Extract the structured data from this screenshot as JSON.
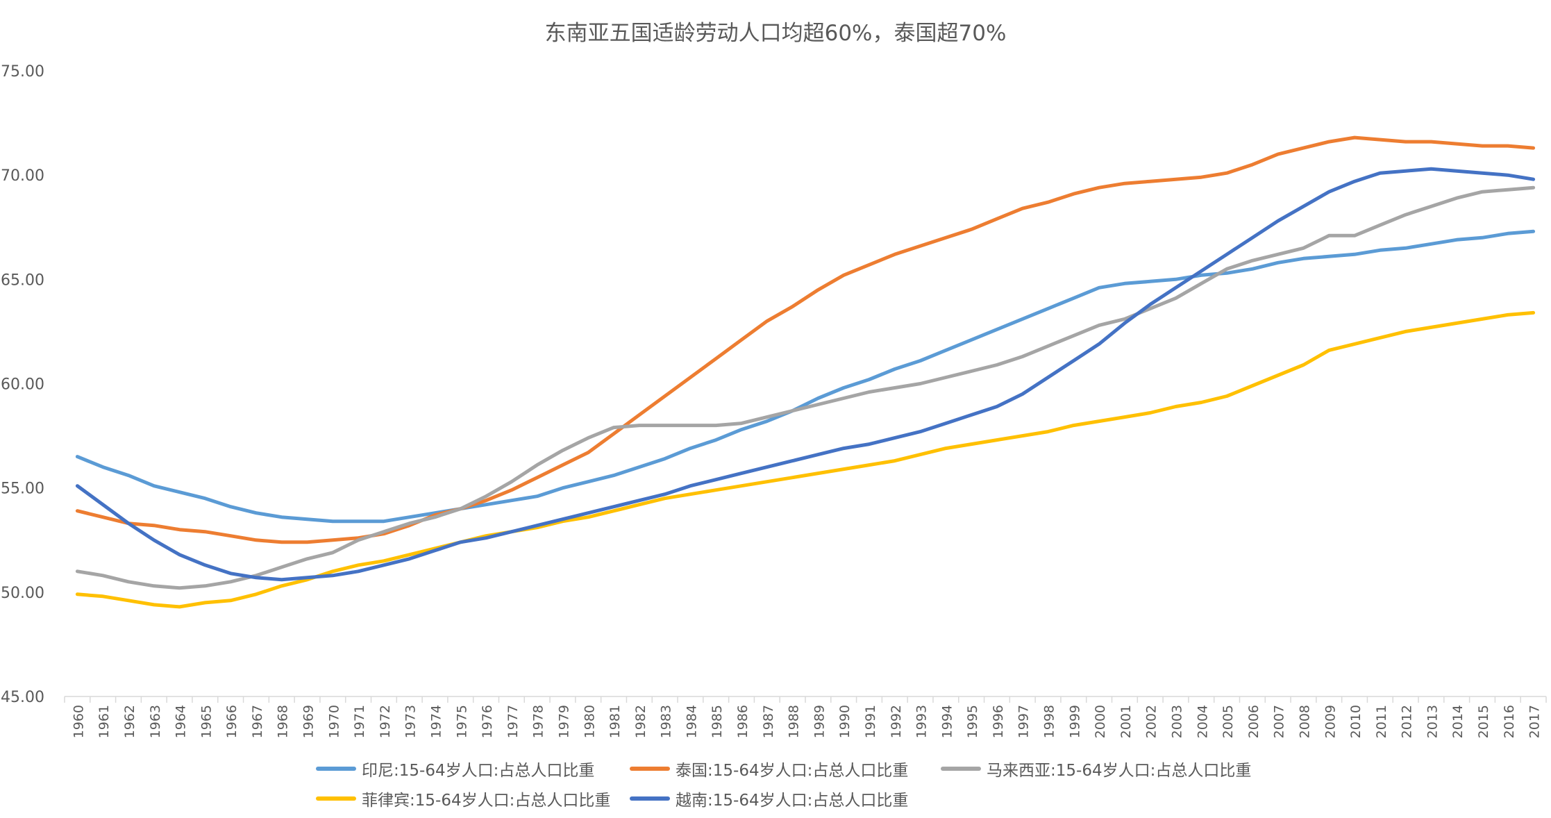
{
  "chart_data": {
    "type": "line",
    "title": "东南亚五国适龄劳动人口均超60%，泰国超70%",
    "xlabel": "",
    "ylabel": "",
    "ylim": [
      45,
      75
    ],
    "yticks": [
      "45.00",
      "50.00",
      "55.00",
      "60.00",
      "65.00",
      "70.00",
      "75.00"
    ],
    "grid": false,
    "legend_position": "bottom",
    "x": [
      "1960",
      "1961",
      "1962",
      "1963",
      "1964",
      "1965",
      "1966",
      "1967",
      "1968",
      "1969",
      "1970",
      "1971",
      "1972",
      "1973",
      "1974",
      "1975",
      "1976",
      "1977",
      "1978",
      "1979",
      "1980",
      "1981",
      "1982",
      "1983",
      "1984",
      "1985",
      "1986",
      "1987",
      "1988",
      "1989",
      "1990",
      "1991",
      "1992",
      "1993",
      "1994",
      "1995",
      "1996",
      "1997",
      "1998",
      "1999",
      "2000",
      "2001",
      "2002",
      "2003",
      "2004",
      "2005",
      "2006",
      "2007",
      "2008",
      "2009",
      "2010",
      "2011",
      "2012",
      "2013",
      "2014",
      "2015",
      "2016",
      "2017"
    ],
    "series": [
      {
        "name": "印尼:15-64岁人口:占总人口比重",
        "color": "#5B9BD5",
        "values": [
          56.5,
          56.0,
          55.6,
          55.1,
          54.8,
          54.5,
          54.1,
          53.8,
          53.6,
          53.5,
          53.4,
          53.4,
          53.4,
          53.6,
          53.8,
          54.0,
          54.2,
          54.4,
          54.6,
          55.0,
          55.3,
          55.6,
          56.0,
          56.4,
          56.9,
          57.3,
          57.8,
          58.2,
          58.7,
          59.3,
          59.8,
          60.2,
          60.7,
          61.1,
          61.6,
          62.1,
          62.6,
          63.1,
          63.6,
          64.1,
          64.6,
          64.8,
          64.9,
          65.0,
          65.2,
          65.3,
          65.5,
          65.8,
          66.0,
          66.1,
          66.2,
          66.4,
          66.5,
          66.7,
          66.9,
          67.0,
          67.2,
          67.3
        ]
      },
      {
        "name": "泰国:15-64岁人口:占总人口比重",
        "color": "#ED7D31",
        "values": [
          53.9,
          53.6,
          53.3,
          53.2,
          53.0,
          52.9,
          52.7,
          52.5,
          52.4,
          52.4,
          52.5,
          52.6,
          52.8,
          53.2,
          53.7,
          54.0,
          54.4,
          54.9,
          55.5,
          56.1,
          56.7,
          57.6,
          58.5,
          59.4,
          60.3,
          61.2,
          62.1,
          63.0,
          63.7,
          64.5,
          65.2,
          65.7,
          66.2,
          66.6,
          67.0,
          67.4,
          67.9,
          68.4,
          68.7,
          69.1,
          69.4,
          69.6,
          69.7,
          69.8,
          69.9,
          70.1,
          70.5,
          71.0,
          71.3,
          71.6,
          71.8,
          71.7,
          71.6,
          71.6,
          71.5,
          71.4,
          71.4,
          71.3
        ]
      },
      {
        "name": "马来西亚:15-64岁人口:占总人口比重",
        "color": "#A5A5A5",
        "values": [
          51.0,
          50.8,
          50.5,
          50.3,
          50.2,
          50.3,
          50.5,
          50.8,
          51.2,
          51.6,
          51.9,
          52.5,
          52.9,
          53.3,
          53.6,
          54.0,
          54.6,
          55.3,
          56.1,
          56.8,
          57.4,
          57.9,
          58.0,
          58.0,
          58.0,
          58.0,
          58.1,
          58.4,
          58.7,
          59.0,
          59.3,
          59.6,
          59.8,
          60.0,
          60.3,
          60.6,
          60.9,
          61.3,
          61.8,
          62.3,
          62.8,
          63.1,
          63.6,
          64.1,
          64.8,
          65.5,
          65.9,
          66.2,
          66.5,
          67.1,
          67.1,
          67.6,
          68.1,
          68.5,
          68.9,
          69.2,
          69.3,
          69.4
        ]
      },
      {
        "name": "菲律宾:15-64岁人口:占总人口比重",
        "color": "#FFC000",
        "values": [
          49.9,
          49.8,
          49.6,
          49.4,
          49.3,
          49.5,
          49.6,
          49.9,
          50.3,
          50.6,
          51.0,
          51.3,
          51.5,
          51.8,
          52.1,
          52.4,
          52.7,
          52.9,
          53.1,
          53.4,
          53.6,
          53.9,
          54.2,
          54.5,
          54.7,
          54.9,
          55.1,
          55.3,
          55.5,
          55.7,
          55.9,
          56.1,
          56.3,
          56.6,
          56.9,
          57.1,
          57.3,
          57.5,
          57.7,
          58.0,
          58.2,
          58.4,
          58.6,
          58.9,
          59.1,
          59.4,
          59.9,
          60.4,
          60.9,
          61.6,
          61.9,
          62.2,
          62.5,
          62.7,
          62.9,
          63.1,
          63.3,
          63.4
        ]
      },
      {
        "name": "越南:15-64岁人口:占总人口比重",
        "color": "#4472C4",
        "values": [
          55.1,
          54.2,
          53.3,
          52.5,
          51.8,
          51.3,
          50.9,
          50.7,
          50.6,
          50.7,
          50.8,
          51.0,
          51.3,
          51.6,
          52.0,
          52.4,
          52.6,
          52.9,
          53.2,
          53.5,
          53.8,
          54.1,
          54.4,
          54.7,
          55.1,
          55.4,
          55.7,
          56.0,
          56.3,
          56.6,
          56.9,
          57.1,
          57.4,
          57.7,
          58.1,
          58.5,
          58.9,
          59.5,
          60.3,
          61.1,
          61.9,
          62.9,
          63.8,
          64.6,
          65.4,
          66.2,
          67.0,
          67.8,
          68.5,
          69.2,
          69.7,
          70.1,
          70.2,
          70.3,
          70.2,
          70.1,
          70.0,
          69.8
        ]
      }
    ]
  }
}
